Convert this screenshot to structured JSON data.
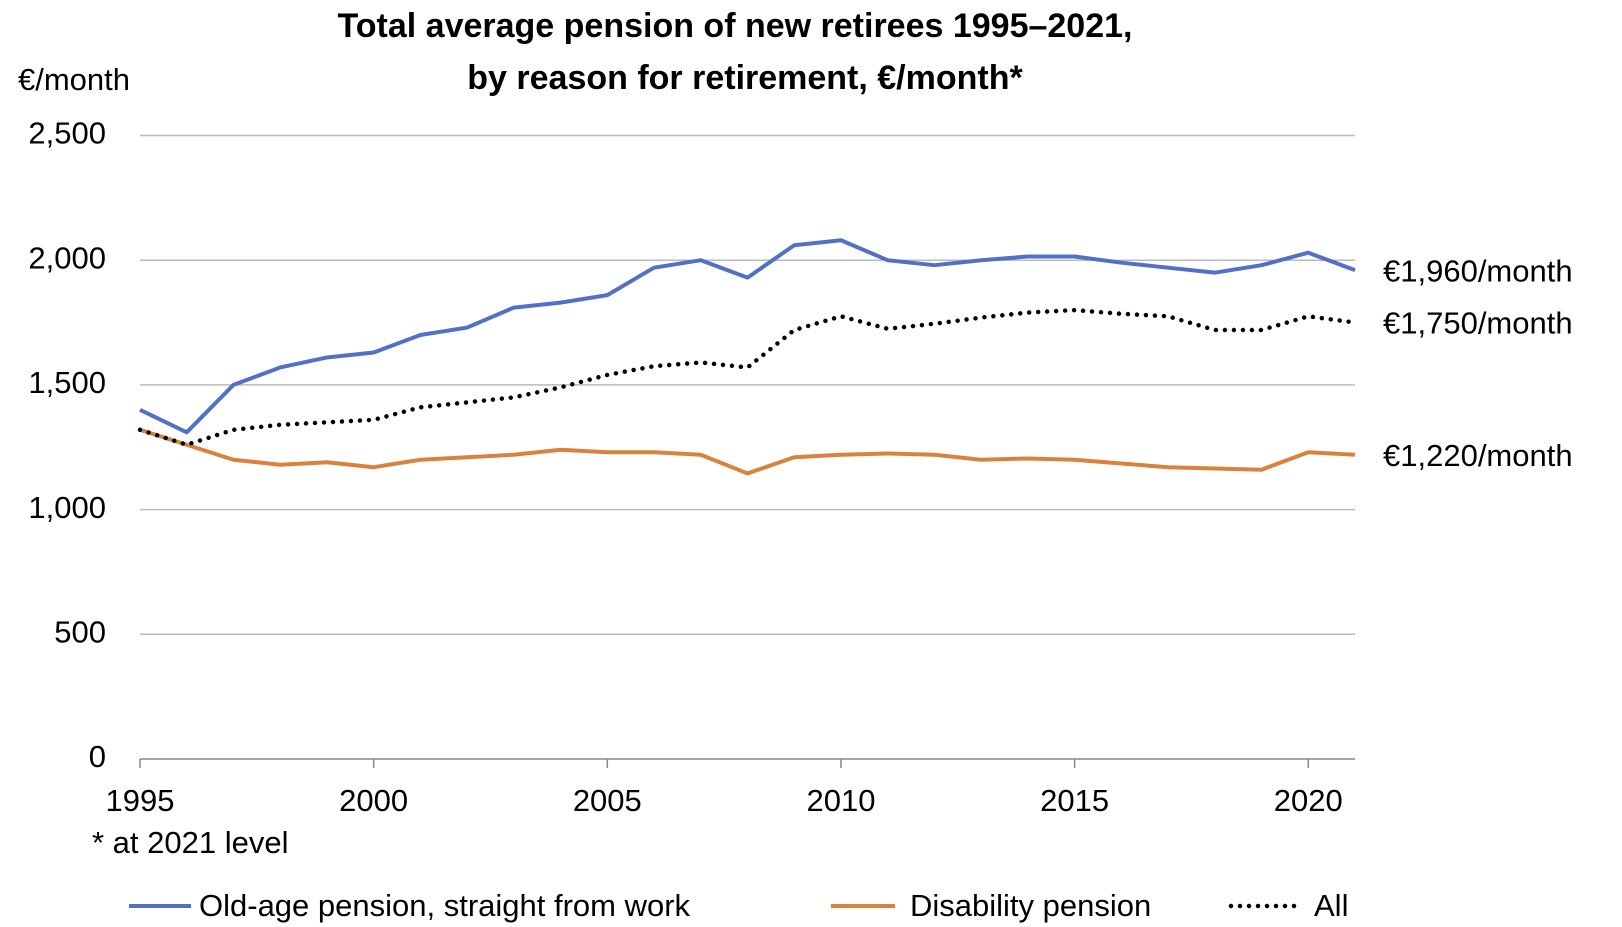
{
  "chart_data": {
    "type": "line",
    "title": [
      "Total average pension of new retirees 1995–2021,",
      "by reason for retirement, €/month*"
    ],
    "y_axis_label": "€/month",
    "footnote": "* at 2021 level",
    "x": [
      1995,
      1996,
      1997,
      1998,
      1999,
      2000,
      2001,
      2002,
      2003,
      2004,
      2005,
      2006,
      2007,
      2008,
      2009,
      2010,
      2011,
      2012,
      2013,
      2014,
      2015,
      2016,
      2017,
      2018,
      2019,
      2020,
      2021
    ],
    "xlim": [
      1995,
      2021
    ],
    "xticks": [
      1995,
      2000,
      2005,
      2010,
      2015,
      2020
    ],
    "ylim": [
      0,
      2500
    ],
    "yticks": [
      0,
      500,
      {
        "value": 1000,
        "label": "1,000"
      },
      {
        "value": 1500,
        "label": "1,500"
      },
      {
        "value": 2000,
        "label": "2,000"
      },
      {
        "value": 2500,
        "label": "2,500"
      }
    ],
    "grid": true,
    "legend": "bottom",
    "series": [
      {
        "name": "Old-age pension, straight from work",
        "color": "#5470c6",
        "style": "solid",
        "end_label": "€1,960/month",
        "values": [
          1400,
          1310,
          1500,
          1570,
          1610,
          1630,
          1700,
          1730,
          1810,
          1830,
          1860,
          1970,
          2000,
          1930,
          2060,
          2080,
          2000,
          1980,
          2000,
          2015,
          2015,
          1990,
          1970,
          1950,
          1980,
          2030,
          1960
        ]
      },
      {
        "name": "Disability pension",
        "color": "#d9823b",
        "style": "solid",
        "end_label": "€1,220/month",
        "values": [
          1320,
          1260,
          1200,
          1180,
          1190,
          1170,
          1200,
          1210,
          1220,
          1240,
          1230,
          1230,
          1220,
          1145,
          1210,
          1220,
          1225,
          1220,
          1200,
          1205,
          1200,
          1185,
          1170,
          1165,
          1160,
          1230,
          1220
        ]
      },
      {
        "name": "All",
        "color": "#000000",
        "style": "dotted",
        "end_label": "€1,750/month",
        "values": [
          1320,
          1260,
          1320,
          1340,
          1350,
          1360,
          1410,
          1430,
          1450,
          1490,
          1540,
          1575,
          1590,
          1570,
          1720,
          1775,
          1725,
          1745,
          1770,
          1790,
          1800,
          1785,
          1775,
          1720,
          1720,
          1775,
          1750
        ]
      }
    ]
  }
}
